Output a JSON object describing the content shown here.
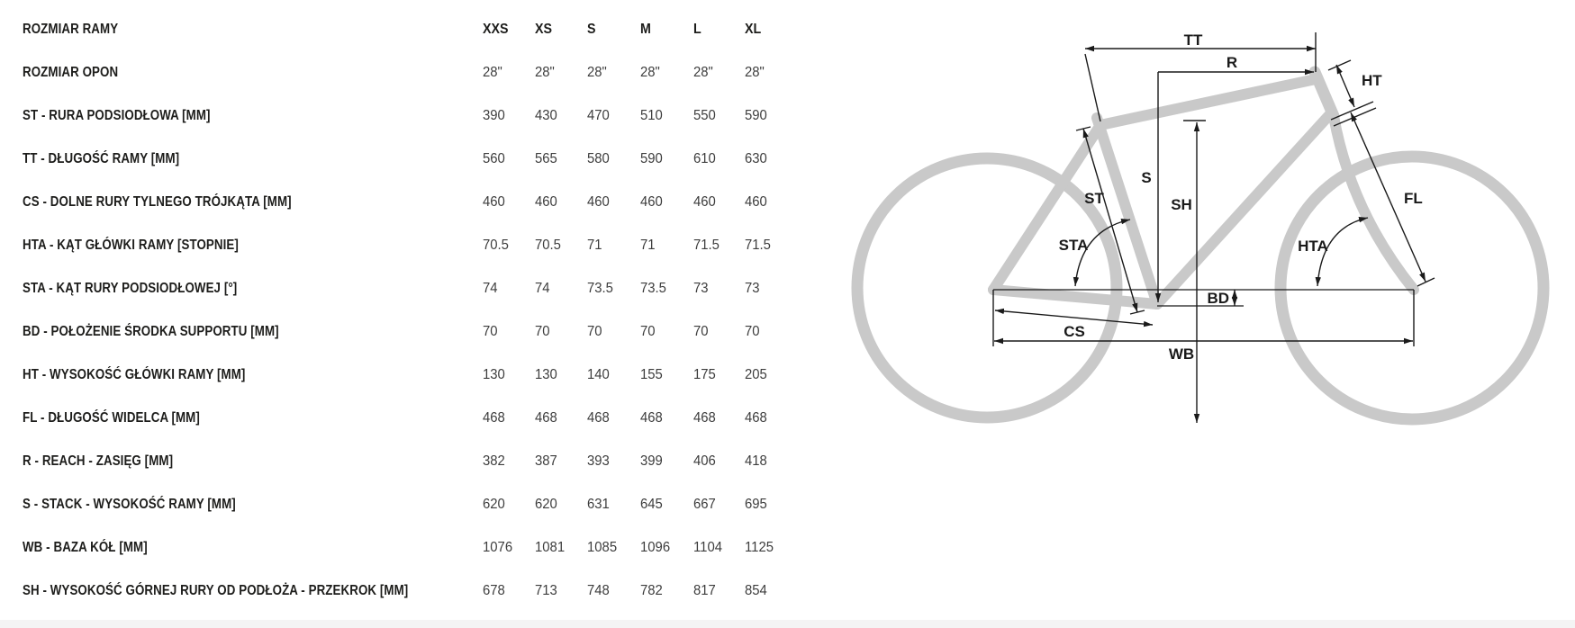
{
  "table": {
    "header": {
      "label": "ROZMIAR RAMY",
      "columns": [
        "XXS",
        "XS",
        "S",
        "M",
        "L",
        "XL"
      ]
    },
    "rows": [
      {
        "label": "ROZMIAR OPON",
        "values": [
          "28\"",
          "28\"",
          "28\"",
          "28\"",
          "28\"",
          "28\""
        ]
      },
      {
        "label": "ST - RURA PODSIODŁOWA [MM]",
        "values": [
          "390",
          "430",
          "470",
          "510",
          "550",
          "590"
        ]
      },
      {
        "label": "TT - DŁUGOŚĆ RAMY [MM]",
        "values": [
          "560",
          "565",
          "580",
          "590",
          "610",
          "630"
        ]
      },
      {
        "label": "CS - DOLNE RURY TYLNEGO TRÓJKĄTA [MM]",
        "values": [
          "460",
          "460",
          "460",
          "460",
          "460",
          "460"
        ]
      },
      {
        "label": "HTA - KĄT GŁÓWKI RAMY [STOPNIE]",
        "values": [
          "70.5",
          "70.5",
          "71",
          "71",
          "71.5",
          "71.5"
        ]
      },
      {
        "label": "STA - KĄT RURY PODSIODŁOWEJ [°]",
        "values": [
          "74",
          "74",
          "73.5",
          "73.5",
          "73",
          "73"
        ]
      },
      {
        "label": "BD - POŁOŻENIE ŚRODKA SUPPORTU [MM]",
        "values": [
          "70",
          "70",
          "70",
          "70",
          "70",
          "70"
        ]
      },
      {
        "label": "HT - WYSOKOŚĆ GŁÓWKI RAMY [MM]",
        "values": [
          "130",
          "130",
          "140",
          "155",
          "175",
          "205"
        ]
      },
      {
        "label": "FL - DŁUGOŚĆ WIDELCA [MM]",
        "values": [
          "468",
          "468",
          "468",
          "468",
          "468",
          "468"
        ]
      },
      {
        "label": "R - REACH - ZASIĘG [MM]",
        "values": [
          "382",
          "387",
          "393",
          "399",
          "406",
          "418"
        ]
      },
      {
        "label": "S - STACK - WYSOKOŚĆ RAMY [MM]",
        "values": [
          "620",
          "620",
          "631",
          "645",
          "667",
          "695"
        ]
      },
      {
        "label": "WB - BAZA KÓŁ [MM]",
        "values": [
          "1076",
          "1081",
          "1085",
          "1096",
          "1104",
          "1125"
        ]
      },
      {
        "label": "SH - WYSOKOŚĆ GÓRNEJ RURY OD PODŁOŻA - PRZEKROK [MM]",
        "values": [
          "678",
          "713",
          "748",
          "782",
          "817",
          "854"
        ]
      }
    ]
  },
  "diagram": {
    "labels": {
      "tt": "TT",
      "r": "R",
      "ht": "HT",
      "st": "ST",
      "s": "S",
      "sh": "SH",
      "sta": "STA",
      "hta": "HTA",
      "fl": "FL",
      "bd": "BD",
      "cs": "CS",
      "wb": "WB"
    },
    "frame_color": "#c9c9c9",
    "line_color": "#1a1a1a"
  }
}
